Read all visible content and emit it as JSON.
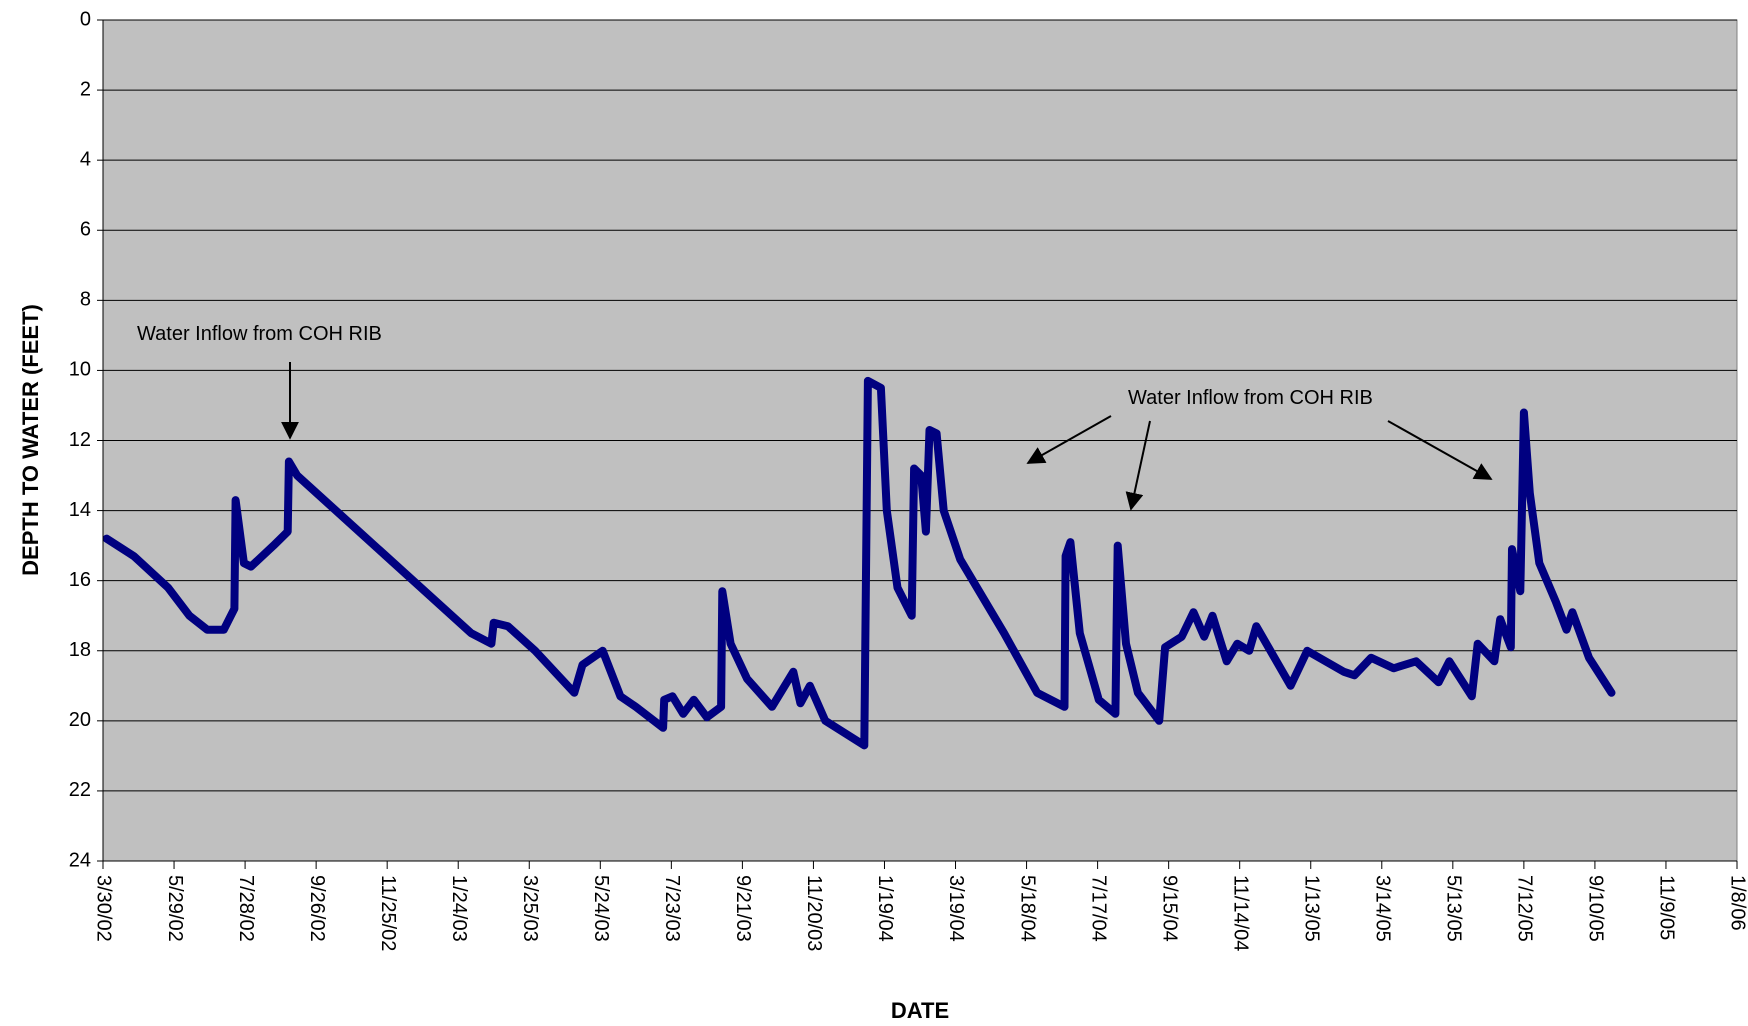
{
  "chart_data": {
    "type": "line",
    "x_label": "DATE",
    "y_label": "DEPTH TO WATER (FEET)",
    "annotations": [
      {
        "text": "Water Inflow from COH RIB"
      },
      {
        "text": "Water Inflow from COH RIB"
      }
    ],
    "color": "#000080",
    "y_inverted": true,
    "grid": true,
    "ylim": [
      0,
      24
    ],
    "yticks": [
      0,
      2,
      4,
      6,
      8,
      10,
      12,
      14,
      16,
      18,
      20,
      22,
      24
    ],
    "xlim": [
      "2002-03-30",
      "2006-01-08"
    ],
    "xticks": [
      {
        "value": "2002-03-30",
        "label": "3/30/02"
      },
      {
        "value": "2002-05-29",
        "label": "5/29/02"
      },
      {
        "value": "2002-07-28",
        "label": "7/28/02"
      },
      {
        "value": "2002-09-26",
        "label": "9/26/02"
      },
      {
        "value": "2002-11-25",
        "label": "11/25/02"
      },
      {
        "value": "2003-01-24",
        "label": "1/24/03"
      },
      {
        "value": "2003-03-25",
        "label": "3/25/03"
      },
      {
        "value": "2003-05-24",
        "label": "5/24/03"
      },
      {
        "value": "2003-07-23",
        "label": "7/23/03"
      },
      {
        "value": "2003-09-21",
        "label": "9/21/03"
      },
      {
        "value": "2003-11-20",
        "label": "11/20/03"
      },
      {
        "value": "2004-01-19",
        "label": "1/19/04"
      },
      {
        "value": "2004-03-19",
        "label": "3/19/04"
      },
      {
        "value": "2004-05-18",
        "label": "5/18/04"
      },
      {
        "value": "2004-07-17",
        "label": "7/17/04"
      },
      {
        "value": "2004-09-15",
        "label": "9/15/04"
      },
      {
        "value": "2004-11-14",
        "label": "11/14/04"
      },
      {
        "value": "2005-01-13",
        "label": "1/13/05"
      },
      {
        "value": "2005-03-14",
        "label": "3/14/05"
      },
      {
        "value": "2005-05-13",
        "label": "5/13/05"
      },
      {
        "value": "2005-07-12",
        "label": "7/12/05"
      },
      {
        "value": "2005-09-10",
        "label": "9/10/05"
      },
      {
        "value": "2005-11-09",
        "label": "11/9/05"
      },
      {
        "value": "2006-01-08",
        "label": "1/8/06"
      }
    ],
    "x": [
      "2002-04-02",
      "2002-04-25",
      "2002-05-24",
      "2002-06-11",
      "2002-06-26",
      "2002-07-10",
      "2002-07-19",
      "2002-07-20",
      "2002-07-27",
      "2002-08-02",
      "2002-08-21",
      "2002-09-02",
      "2002-09-03",
      "2002-09-10",
      "2003-02-04",
      "2003-02-21",
      "2003-02-23",
      "2003-03-07",
      "2003-03-30",
      "2003-05-02",
      "2003-05-09",
      "2003-05-26",
      "2003-06-10",
      "2003-06-23",
      "2003-07-16",
      "2003-07-17",
      "2003-07-24",
      "2003-08-02",
      "2003-08-11",
      "2003-08-22",
      "2003-09-03",
      "2003-09-04",
      "2003-09-11",
      "2003-09-25",
      "2003-10-16",
      "2003-11-03",
      "2003-11-09",
      "2003-11-17",
      "2003-11-30",
      "2004-01-02",
      "2004-01-05",
      "2004-01-16",
      "2004-01-21",
      "2004-01-30",
      "2004-02-11",
      "2004-02-13",
      "2004-02-19",
      "2004-02-23",
      "2004-02-26",
      "2004-03-03",
      "2004-03-09",
      "2004-03-23",
      "2004-04-29",
      "2004-05-27",
      "2004-06-19",
      "2004-06-20",
      "2004-06-24",
      "2004-07-02",
      "2004-07-18",
      "2004-08-01",
      "2004-08-03",
      "2004-08-10",
      "2004-08-20",
      "2004-09-07",
      "2004-09-12",
      "2004-09-26",
      "2004-10-06",
      "2004-10-15",
      "2004-10-22",
      "2004-11-03",
      "2004-11-12",
      "2004-11-22",
      "2004-11-28",
      "2004-12-27",
      "2005-01-10",
      "2005-02-10",
      "2005-02-19",
      "2005-03-05",
      "2005-03-24",
      "2005-04-12",
      "2005-05-01",
      "2005-05-10",
      "2005-05-29",
      "2005-06-03",
      "2005-06-17",
      "2005-06-22",
      "2005-07-01",
      "2005-07-02",
      "2005-07-09",
      "2005-07-12",
      "2005-07-17",
      "2005-07-25",
      "2005-08-08",
      "2005-08-17",
      "2005-08-22",
      "2005-09-05",
      "2005-09-24"
    ],
    "values": [
      14.8,
      15.3,
      16.2,
      17.0,
      17.4,
      17.4,
      16.8,
      13.7,
      15.5,
      15.6,
      15.0,
      14.6,
      12.6,
      13.0,
      17.5,
      17.8,
      17.2,
      17.3,
      18.0,
      19.2,
      18.4,
      18.0,
      19.3,
      19.6,
      20.2,
      19.4,
      19.3,
      19.8,
      19.4,
      19.9,
      19.6,
      16.3,
      17.8,
      18.8,
      19.6,
      18.6,
      19.5,
      19.0,
      20.0,
      20.7,
      10.3,
      10.5,
      14.0,
      16.2,
      17.0,
      12.8,
      13.0,
      14.6,
      11.7,
      11.8,
      14.0,
      15.4,
      17.5,
      19.2,
      19.6,
      15.3,
      14.9,
      17.5,
      19.4,
      19.8,
      15.0,
      17.8,
      19.2,
      20.0,
      17.9,
      17.6,
      16.9,
      17.6,
      17.0,
      18.3,
      17.8,
      18.0,
      17.3,
      19.0,
      18.0,
      18.6,
      18.7,
      18.2,
      18.5,
      18.3,
      18.9,
      18.3,
      19.3,
      17.8,
      18.3,
      17.1,
      17.9,
      15.1,
      16.3,
      11.2,
      13.5,
      15.5,
      16.6,
      17.4,
      16.9,
      18.2,
      19.2
    ]
  }
}
